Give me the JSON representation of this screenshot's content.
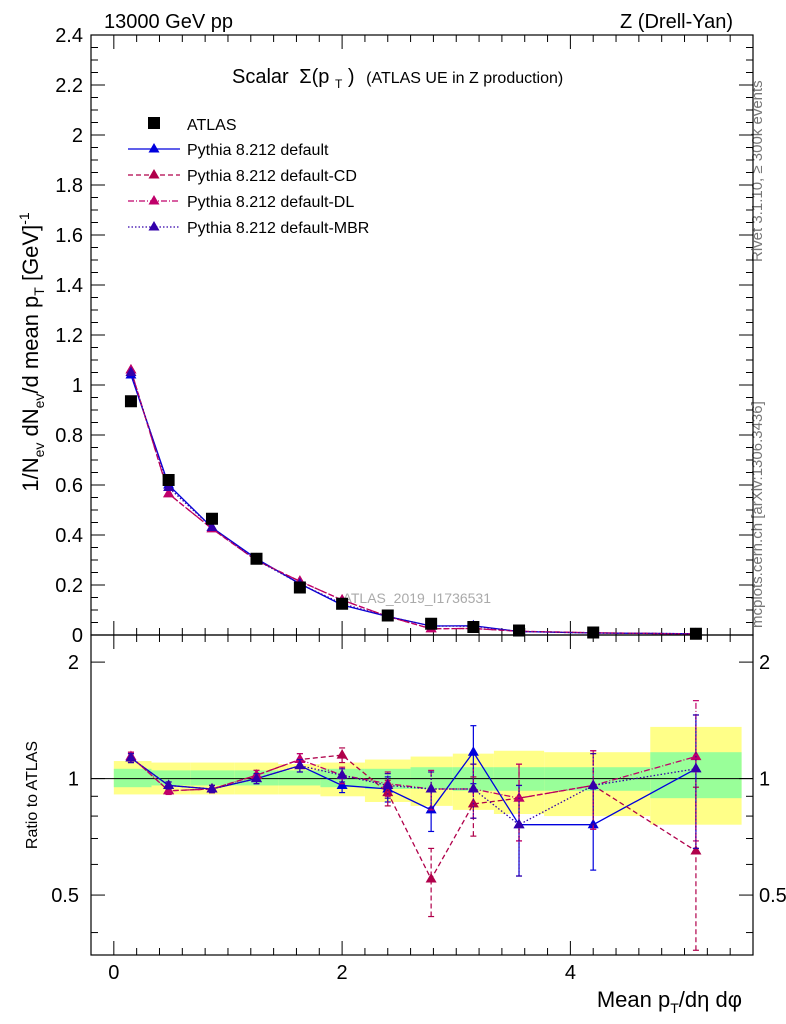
{
  "header": {
    "left": "13000 GeV pp",
    "right": "Z (Drell-Yan)"
  },
  "side": {
    "rivet": "Rivet 3.1.10, ≥ 300k events",
    "mcplots": "mcplots.cern.ch [arXiv:1306.3436]"
  },
  "watermark": "ATLAS_2019_I1736531",
  "colors": {
    "atlas": "#000000",
    "default": "#0000dd",
    "cd": "#b0004a",
    "dl": "#c0006a",
    "mbr": "#3300aa",
    "band_inner": "#99ff99",
    "band_outer": "#ffff88"
  },
  "chart_data": [
    {
      "type": "scatter",
      "panel": "main",
      "title_prefix": "Scalar",
      "title_sigma": "Σ(p",
      "title_sub": "T",
      "title_close": ")",
      "title_suffix": "(ATLAS UE in Z production)",
      "ylabel": "1/N_ev dN_ev/d mean p_T [GeV]^-1",
      "ylabel_parts": {
        "a": "1/N",
        "b": "ev",
        "c": " dN",
        "d": "ev",
        "e": "/d mean p",
        "f": "T",
        "g": " [GeV]",
        "h": "-1"
      },
      "xlim": [
        -0.2,
        5.6
      ],
      "ylim": [
        0,
        2.4
      ],
      "yticks": [
        0,
        0.2,
        0.4,
        0.6,
        0.8,
        1,
        1.2,
        1.4,
        1.6,
        1.8,
        2,
        2.2,
        2.4
      ],
      "ytick_labels": [
        "0",
        "0.2",
        "0.4",
        "0.6",
        "0.8",
        "1",
        "1.2",
        "1.4",
        "1.6",
        "1.8",
        "2",
        "2.2",
        "2.4"
      ],
      "x": [
        0.15,
        0.48,
        0.86,
        1.25,
        1.63,
        2.0,
        2.4,
        2.78,
        3.15,
        3.55,
        4.2,
        5.1
      ],
      "legend": [
        "ATLAS",
        "Pythia 8.212 default",
        "Pythia 8.212 default-CD",
        "Pythia 8.212 default-DL",
        "Pythia 8.212 default-MBR"
      ],
      "series": [
        {
          "name": "ATLAS",
          "values": [
            0.935,
            0.62,
            0.465,
            0.305,
            0.19,
            0.125,
            0.078,
            0.045,
            0.032,
            0.018,
            0.01,
            0.005
          ]
        },
        {
          "name": "Pythia 8.212 default",
          "values": [
            1.04,
            0.6,
            0.43,
            0.305,
            0.205,
            0.12,
            0.074,
            0.036,
            0.037,
            0.014,
            0.008,
            0.005
          ]
        },
        {
          "name": "Pythia 8.212 default-CD",
          "values": [
            1.06,
            0.565,
            0.425,
            0.298,
            0.215,
            0.14,
            0.074,
            0.025,
            0.026,
            0.015,
            0.009,
            0.004
          ]
        },
        {
          "name": "Pythia 8.212 default-DL",
          "values": [
            1.06,
            0.565,
            0.425,
            0.298,
            0.215,
            0.14,
            0.074,
            0.025,
            0.026,
            0.015,
            0.009,
            0.004
          ]
        },
        {
          "name": "Pythia 8.212 default-MBR",
          "values": [
            1.05,
            0.59,
            0.43,
            0.3,
            0.205,
            0.125,
            0.074,
            0.036,
            0.035,
            0.014,
            0.008,
            0.005
          ]
        }
      ]
    },
    {
      "type": "scatter",
      "panel": "ratio",
      "ylabel": "Ratio to ATLAS",
      "xlabel": "Mean p_T/dη dφ",
      "xlabel_parts": {
        "a": "Mean p",
        "b": "T",
        "c": "/dη dφ"
      },
      "ylim": [
        0.35,
        2.35
      ],
      "yticks": [
        0.5,
        1,
        2
      ],
      "ytick_labels": [
        "0.5",
        "1",
        "2"
      ],
      "xticks": [
        0,
        2,
        4
      ],
      "xtick_labels": [
        "0",
        "2",
        "4"
      ],
      "x": [
        0.15,
        0.48,
        0.86,
        1.25,
        1.63,
        2.0,
        2.4,
        2.78,
        3.15,
        3.55,
        4.2,
        5.1
      ],
      "bins": [
        0.0,
        0.33,
        0.67,
        1.06,
        1.44,
        1.81,
        2.2,
        2.6,
        2.97,
        3.33,
        3.77,
        4.7,
        5.5
      ],
      "band_inner": [
        [
          0.95,
          1.06
        ],
        [
          0.96,
          1.05
        ],
        [
          0.96,
          1.05
        ],
        [
          0.96,
          1.05
        ],
        [
          0.96,
          1.05
        ],
        [
          0.95,
          1.06
        ],
        [
          0.94,
          1.06
        ],
        [
          0.94,
          1.07
        ],
        [
          0.93,
          1.07
        ],
        [
          0.93,
          1.07
        ],
        [
          0.93,
          1.07
        ],
        [
          0.89,
          1.17
        ]
      ],
      "band_outer": [
        [
          0.91,
          1.11
        ],
        [
          0.91,
          1.1
        ],
        [
          0.91,
          1.1
        ],
        [
          0.91,
          1.1
        ],
        [
          0.91,
          1.09
        ],
        [
          0.9,
          1.1
        ],
        [
          0.87,
          1.12
        ],
        [
          0.85,
          1.14
        ],
        [
          0.83,
          1.16
        ],
        [
          0.81,
          1.18
        ],
        [
          0.8,
          1.17
        ],
        [
          0.76,
          1.36
        ]
      ],
      "series": [
        {
          "name": "Pythia 8.212 default",
          "values": [
            1.13,
            0.96,
            0.94,
            1.0,
            1.08,
            0.96,
            0.94,
            0.83,
            1.17,
            0.76,
            0.76,
            1.06
          ],
          "errors": [
            0.03,
            0.02,
            0.02,
            0.03,
            0.04,
            0.04,
            0.07,
            0.1,
            0.2,
            0.2,
            0.18,
            0.4
          ]
        },
        {
          "name": "Pythia 8.212 default-CD",
          "values": [
            1.14,
            0.93,
            0.94,
            1.02,
            1.12,
            1.15,
            0.92,
            0.55,
            0.86,
            0.89,
            0.96,
            0.65
          ],
          "errors": [
            0.03,
            0.02,
            0.02,
            0.03,
            0.04,
            0.05,
            0.07,
            0.11,
            0.15,
            0.2,
            0.22,
            0.3
          ]
        },
        {
          "name": "Pythia 8.212 default-DL",
          "values": [
            1.14,
            0.93,
            0.94,
            1.02,
            1.12,
            1.02,
            0.97,
            0.94,
            0.94,
            0.89,
            0.96,
            1.14
          ],
          "errors": [
            0.03,
            0.02,
            0.02,
            0.03,
            0.04,
            0.05,
            0.07,
            0.11,
            0.15,
            0.2,
            0.22,
            0.45
          ]
        },
        {
          "name": "Pythia 8.212 default-MBR",
          "values": [
            1.13,
            0.96,
            0.94,
            1.0,
            1.08,
            1.02,
            0.96,
            0.94,
            0.94,
            0.76,
            0.96,
            1.06
          ],
          "errors": [
            0.03,
            0.02,
            0.02,
            0.03,
            0.04,
            0.04,
            0.07,
            0.1,
            0.15,
            0.2,
            0.2,
            0.4
          ]
        }
      ]
    }
  ]
}
